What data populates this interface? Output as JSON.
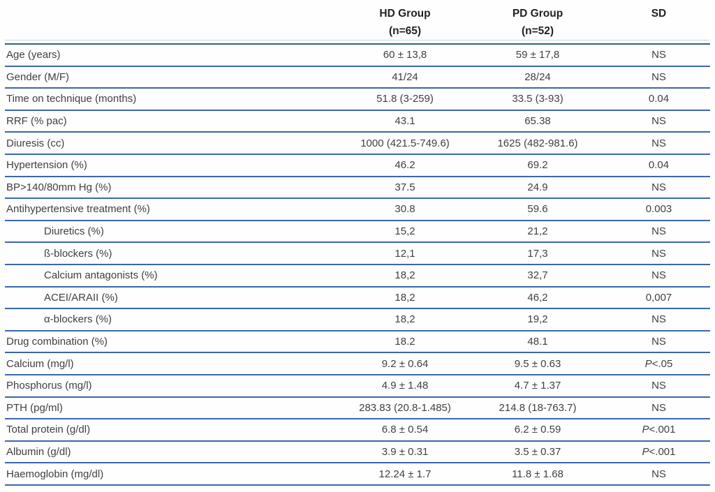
{
  "colors": {
    "row_rule_blue": "#3a67ad",
    "header_rule_dark": "#32617c",
    "header_rule_light": "#c2d8e8",
    "body_text": "#3f3f3f",
    "header_text": "#222222"
  },
  "chart_data": {
    "type": "table",
    "columns": [
      {
        "line1": "",
        "line2": ""
      },
      {
        "line1": "HD Group",
        "line2": "(n=65)"
      },
      {
        "line1": "PD Group",
        "line2": "(n=52)"
      },
      {
        "line1": "SD",
        "line2": ""
      }
    ],
    "rows": [
      {
        "label": "Age (years)",
        "indent": false,
        "hd": "60 ± 13,8",
        "pd": "59 ± 17,8",
        "sd_prefix": "",
        "sd": "NS"
      },
      {
        "label": "Gender (M/F)",
        "indent": false,
        "hd": "41/24",
        "pd": "28/24",
        "sd_prefix": "",
        "sd": "NS"
      },
      {
        "label": "Time on technique (months)",
        "indent": false,
        "hd": "51.8 (3-259)",
        "pd": "33.5 (3-93)",
        "sd_prefix": "",
        "sd": "0.04"
      },
      {
        "label": "RRF (% pac)",
        "indent": false,
        "hd": "43.1",
        "pd": "65.38",
        "sd_prefix": "",
        "sd": "NS"
      },
      {
        "label": "Diuresis (cc)",
        "indent": false,
        "hd": "1000 (421.5-749.6)",
        "pd": "1625 (482-981.6)",
        "sd_prefix": "",
        "sd": "NS"
      },
      {
        "label": "Hypertension (%)",
        "indent": false,
        "hd": "46.2",
        "pd": "69.2",
        "sd_prefix": "",
        "sd": "0.04"
      },
      {
        "label": "BP>140/80mm Hg (%)",
        "indent": false,
        "hd": "37.5",
        "pd": "24.9",
        "sd_prefix": "",
        "sd": "NS"
      },
      {
        "label": "Antihypertensive treatment (%)",
        "indent": false,
        "hd": "30.8",
        "pd": "59.6",
        "sd_prefix": "",
        "sd": "0.003"
      },
      {
        "label": "Diuretics (%)",
        "indent": true,
        "hd": "15,2",
        "pd": "21,2",
        "sd_prefix": "",
        "sd": "NS"
      },
      {
        "label": "ß-blockers (%)",
        "indent": true,
        "hd": "12,1",
        "pd": "17,3",
        "sd_prefix": "",
        "sd": "NS"
      },
      {
        "label": "Calcium antagonists (%)",
        "indent": true,
        "hd": "18,2",
        "pd": "32,7",
        "sd_prefix": "",
        "sd": "NS"
      },
      {
        "label": "ACEI/ARAII (%)",
        "indent": true,
        "hd": "18,2",
        "pd": "46,2",
        "sd_prefix": "",
        "sd": "0,007"
      },
      {
        "label": "α-blockers (%)",
        "indent": true,
        "hd": "18,2",
        "pd": "19,2",
        "sd_prefix": "",
        "sd": "NS"
      },
      {
        "label": "Drug combination (%)",
        "indent": false,
        "hd": "18.2",
        "pd": "48.1",
        "sd_prefix": "",
        "sd": "NS"
      },
      {
        "label": "Calcium (mg/l)",
        "indent": false,
        "hd": "9.2 ± 0.64",
        "pd": "9.5 ± 0.63",
        "sd_prefix": "P",
        "sd": "<.05"
      },
      {
        "label": "Phosphorus (mg/l)",
        "indent": false,
        "hd": "4.9 ± 1.48",
        "pd": "4.7 ± 1.37",
        "sd_prefix": "",
        "sd": "NS"
      },
      {
        "label": "PTH (pg/ml)",
        "indent": false,
        "hd": "283.83 (20.8-1.485)",
        "pd": "214.8 (18-763.7)",
        "sd_prefix": "",
        "sd": "NS"
      },
      {
        "label": "Total protein (g/dl)",
        "indent": false,
        "hd": "6.8 ± 0.54",
        "pd": "6.2 ± 0.59",
        "sd_prefix": "P",
        "sd": "<.001"
      },
      {
        "label": "Albumin (g/dl)",
        "indent": false,
        "hd": "3.9 ± 0.31",
        "pd": "3.5 ± 0.37",
        "sd_prefix": "P",
        "sd": "<.001"
      },
      {
        "label": "Haemoglobin (mg/dl)",
        "indent": false,
        "hd": "12.24 ± 1.7",
        "pd": "11.8 ± 1.68",
        "sd_prefix": "",
        "sd": "NS"
      }
    ]
  }
}
